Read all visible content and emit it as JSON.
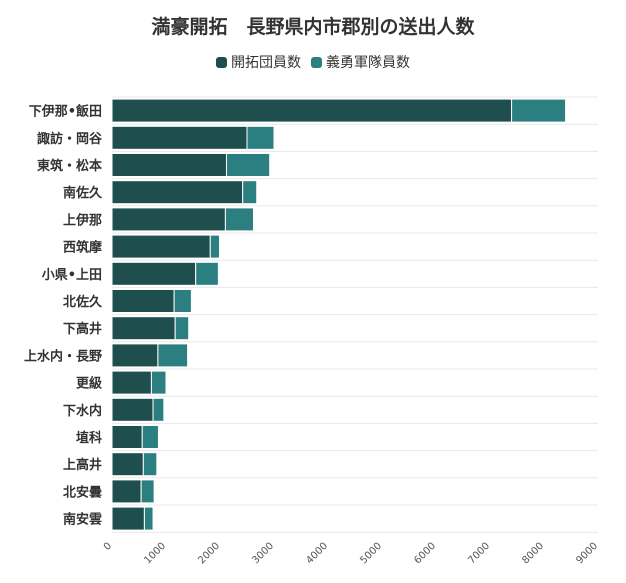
{
  "chart_data": {
    "type": "bar",
    "orientation": "horizontal",
    "stacked": true,
    "title": "満豪開拓　長野県内市郡別の送出人数",
    "categories": [
      "下伊那•飯田",
      "諏訪・岡谷",
      "東筑・松本",
      "南佐久",
      "上伊那",
      "西筑摩",
      "小県•上田",
      "北佐久",
      "下高井",
      "上水内・長野",
      "更級",
      "下水内",
      "埴科",
      "上高井",
      "北安曇",
      "南安雲"
    ],
    "series": [
      {
        "name": "開拓団員数",
        "color": "#1f4e4e",
        "values": [
          7400,
          2500,
          2120,
          2420,
          2100,
          1820,
          1550,
          1150,
          1170,
          850,
          730,
          760,
          560,
          580,
          540,
          600
        ]
      },
      {
        "name": "義勇軍隊員数",
        "color": "#2b7f80",
        "values": [
          1000,
          500,
          800,
          260,
          520,
          170,
          420,
          320,
          250,
          550,
          270,
          200,
          300,
          250,
          240,
          160
        ]
      }
    ],
    "xlim": [
      0,
      9000
    ],
    "x_ticks": [
      0,
      1000,
      2000,
      3000,
      4000,
      5000,
      6000,
      7000,
      8000,
      9000
    ],
    "grid": true,
    "legend_position": "top-center"
  }
}
